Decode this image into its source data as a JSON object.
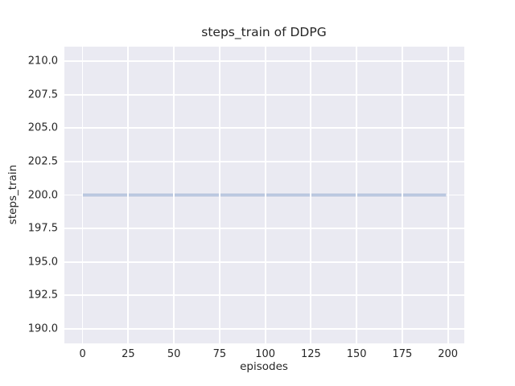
{
  "chart_data": {
    "type": "line",
    "title": "steps_train of DDPG",
    "xlabel": "episodes",
    "ylabel": "steps_train",
    "x_ticks": [
      0,
      25,
      50,
      75,
      100,
      125,
      150,
      175,
      200
    ],
    "y_ticks": [
      190.0,
      192.5,
      195.0,
      197.5,
      200.0,
      202.5,
      205.0,
      207.5,
      210.0
    ],
    "xlim": [
      -9.95,
      208.95
    ],
    "ylim": [
      188.9,
      211.1
    ],
    "grid": true,
    "legend": "none",
    "series": [
      {
        "name": "steps_train",
        "color": "#4c72b0",
        "x": [
          0,
          199
        ],
        "y": [
          200,
          200
        ],
        "note": "constant value 200 for every episode from 0 to 199"
      }
    ],
    "styles": {
      "axes_background": "#eaeaf2",
      "grid_color": "#ffffff",
      "text_color": "#262626",
      "figure_background": "#ffffff",
      "line_width": 2.2
    }
  }
}
